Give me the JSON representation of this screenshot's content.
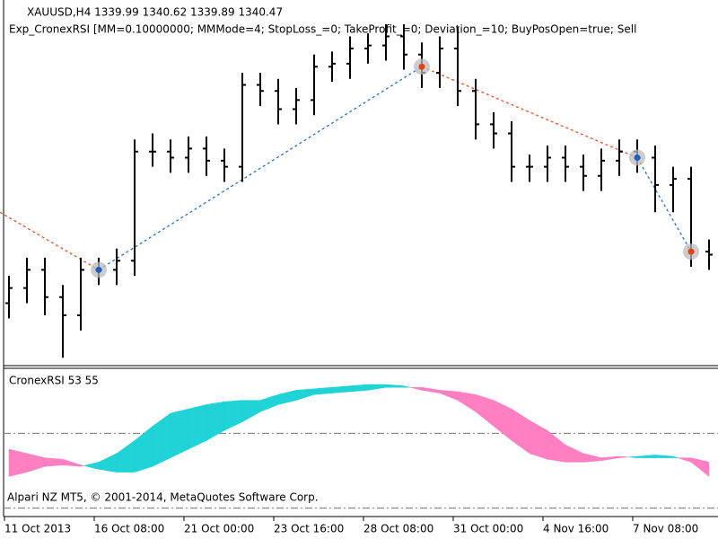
{
  "chart_data": [
    {
      "type": "ohlc",
      "title": "XAUUSD,H4  1339.99 1340.62 1339.89 1340.47",
      "subtitle": "Exp_CronexRSI [MM=0.10000000; MMMode=4; StopLoss_=0; TakeProfit_=0; Deviation_=10; BuyPosOpen=true; Sell",
      "categories": [
        "11 Oct 2013",
        null,
        null,
        null,
        null,
        "16 Oct 08:00",
        null,
        null,
        null,
        null,
        "21 Oct 00:00",
        null,
        null,
        null,
        null,
        "23 Oct 16:00",
        null,
        null,
        null,
        null,
        "28 Oct 08:00",
        null,
        null,
        null,
        null,
        "31 Oct 00:00",
        null,
        null,
        null,
        null,
        "4 Nov 16:00",
        null,
        null,
        null,
        null,
        "7 Nov 08:00",
        null,
        null,
        null,
        null
      ],
      "open": [
        1270,
        1275,
        1281,
        1272,
        1266,
        1281,
        1281,
        1284,
        1320,
        1320,
        1318,
        1321,
        1317,
        1315,
        1342,
        1340,
        1334,
        1337,
        1348,
        1349,
        1354,
        1355,
        1358,
        1352,
        1346,
        1354,
        1340,
        1329,
        1326,
        1315,
        1315,
        1318,
        1315,
        1312,
        1317,
        1320,
        1318,
        1309,
        1311,
        1287
      ],
      "high": [
        1279,
        1285,
        1285,
        1276,
        1285,
        1285,
        1288,
        1324,
        1326,
        1324,
        1325,
        1325,
        1321,
        1346,
        1346,
        1344,
        1341,
        1352,
        1353,
        1358,
        1359,
        1362,
        1362,
        1356,
        1358,
        1361,
        1344,
        1333,
        1330,
        1319,
        1322,
        1322,
        1319,
        1321,
        1324,
        1324,
        1322,
        1315,
        1315,
        1291
      ],
      "low": [
        1265,
        1270,
        1266,
        1252,
        1261,
        1276,
        1276,
        1279,
        1315,
        1313,
        1313,
        1312,
        1310,
        1310,
        1335,
        1329,
        1329,
        1332,
        1343,
        1344,
        1349,
        1350,
        1347,
        1341,
        1341,
        1335,
        1324,
        1321,
        1310,
        1310,
        1310,
        1310,
        1307,
        1307,
        1312,
        1313,
        1300,
        1300,
        1282,
        1281
      ],
      "close": [
        1275,
        1281,
        1272,
        1266,
        1281,
        1281,
        1284,
        1320,
        1320,
        1318,
        1321,
        1317,
        1315,
        1342,
        1340,
        1334,
        1337,
        1348,
        1349,
        1354,
        1355,
        1358,
        1352,
        1346,
        1354,
        1340,
        1329,
        1326,
        1315,
        1315,
        1318,
        1315,
        1312,
        1317,
        1320,
        1318,
        1309,
        1311,
        1287,
        1286
      ],
      "color": "#000000",
      "ylim": [
        1250,
        1370
      ],
      "trade_lines": [
        {
          "color": "#e0502a",
          "x": [
            -0.5,
            5
          ],
          "values": [
            1300,
            1281
          ]
        },
        {
          "color": "#2a70c0",
          "x": [
            5,
            23
          ],
          "values": [
            1281,
            1348
          ]
        },
        {
          "color": "#e0502a",
          "x": [
            23,
            35
          ],
          "values": [
            1348,
            1318
          ]
        },
        {
          "color": "#2a70c0",
          "x": [
            35,
            38
          ],
          "values": [
            1318,
            1287
          ]
        }
      ],
      "signals": {
        "x": [
          5,
          23,
          35,
          38
        ],
        "values": [
          1281,
          1348,
          1318,
          1287
        ],
        "colors": [
          "#1f5fbf",
          "#e0401a",
          "#1f5fbf",
          "#e0401a"
        ]
      }
    },
    {
      "type": "band",
      "title": "CronexRSI 53 55",
      "annotation": "Alpari NZ MT5, © 2001-2014, MetaQuotes Software Corp.",
      "series": [
        {
          "values": [
            26,
            29,
            33,
            34,
            33,
            36,
            42,
            51,
            61,
            70,
            73,
            76,
            78,
            79,
            79,
            83,
            86,
            87,
            88,
            89,
            90,
            90,
            89,
            86,
            84,
            79,
            71,
            61,
            51,
            42,
            38,
            36,
            36,
            37,
            39,
            40,
            41,
            40,
            36,
            26
          ]
        },
        {
          "values": [
            45,
            42,
            39,
            38,
            34,
            31,
            29,
            29,
            33,
            39,
            45,
            51,
            58,
            64,
            71,
            76,
            79,
            83,
            84,
            85,
            86,
            88,
            88,
            88,
            86,
            85,
            83,
            79,
            73,
            65,
            58,
            48,
            42,
            39,
            40,
            39,
            39,
            39,
            39,
            36
          ]
        }
      ],
      "up_color": "#1fd3d6",
      "down_color": "#ff7fc3",
      "ylim": [
        0,
        100
      ],
      "levels": [
        56,
        4
      ]
    }
  ]
}
